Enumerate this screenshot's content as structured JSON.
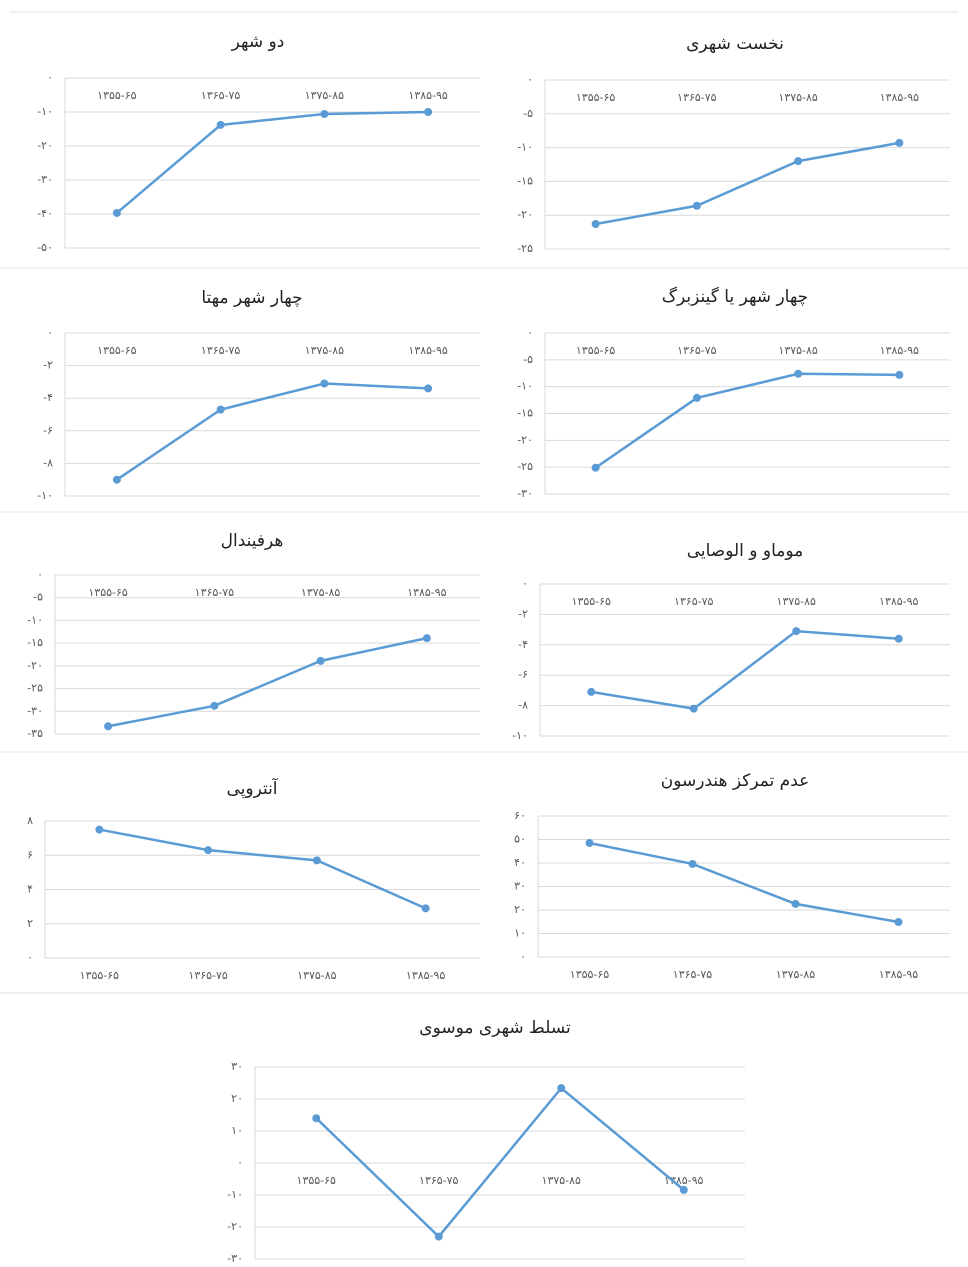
{
  "chart_data": [
    {
      "type": "line",
      "title": "دو شهر",
      "categories": [
        "۱۳۵۵-۶۵",
        "۱۳۶۵-۷۵",
        "۱۳۷۵-۸۵",
        "۱۳۸۵-۹۵"
      ],
      "values": [
        -39.7,
        -13.8,
        -10.6,
        -10
      ],
      "color": "#5b9bd5",
      "ylim": [
        -50,
        0
      ],
      "yticks": [
        {
          "value": 0,
          "label": "۰"
        },
        {
          "value": -10,
          "label": "-۱۰"
        },
        {
          "value": -20,
          "label": "-۲۰"
        },
        {
          "value": -30,
          "label": "-۳۰"
        },
        {
          "value": -40,
          "label": "-۴۰"
        },
        {
          "value": -50,
          "label": "-۵۰"
        }
      ],
      "grid": true
    },
    {
      "type": "line",
      "title": "نخست شهری",
      "categories": [
        "۱۳۵۵-۶۵",
        "۱۳۶۵-۷۵",
        "۱۳۷۵-۸۵",
        "۱۳۸۵-۹۵"
      ],
      "values": [
        -21.3,
        -18.6,
        -12,
        -9.3
      ],
      "color": "#5b9bd5",
      "ylim": [
        -25,
        0
      ],
      "yticks": [
        {
          "value": 0,
          "label": "۰"
        },
        {
          "value": -5,
          "label": "-۵"
        },
        {
          "value": -10,
          "label": "-۱۰"
        },
        {
          "value": -15,
          "label": "-۱۵"
        },
        {
          "value": -20,
          "label": "-۲۰"
        },
        {
          "value": -25,
          "label": "-۲۵"
        }
      ],
      "grid": true
    },
    {
      "type": "line",
      "title": "چهار شهر مهتا",
      "categories": [
        "۱۳۵۵-۶۵",
        "۱۳۶۵-۷۵",
        "۱۳۷۵-۸۵",
        "۱۳۸۵-۹۵"
      ],
      "values": [
        -9,
        -4.7,
        -3.1,
        -3.4
      ],
      "color": "#5b9bd5",
      "ylim": [
        -10,
        0
      ],
      "yticks": [
        {
          "value": 0,
          "label": "۰"
        },
        {
          "value": -2,
          "label": "-۲"
        },
        {
          "value": -4,
          "label": "-۴"
        },
        {
          "value": -6,
          "label": "-۶"
        },
        {
          "value": -8,
          "label": "-۸"
        },
        {
          "value": -10,
          "label": "-۱۰"
        }
      ],
      "grid": true
    },
    {
      "type": "line",
      "title": "چهار شهر یا گینزبرگ",
      "categories": [
        "۱۳۵۵-۶۵",
        "۱۳۶۵-۷۵",
        "۱۳۷۵-۸۵",
        "۱۳۸۵-۹۵"
      ],
      "values": [
        -25.1,
        -12.1,
        -7.6,
        -7.8
      ],
      "color": "#5b9bd5",
      "ylim": [
        -30,
        0
      ],
      "yticks": [
        {
          "value": 0,
          "label": "۰"
        },
        {
          "value": -5,
          "label": "-۵"
        },
        {
          "value": -10,
          "label": "-۱۰"
        },
        {
          "value": -15,
          "label": "-۱۵"
        },
        {
          "value": -20,
          "label": "-۲۰"
        },
        {
          "value": -25,
          "label": "-۲۵"
        },
        {
          "value": -30,
          "label": "-۳۰"
        }
      ],
      "grid": true
    },
    {
      "type": "line",
      "title": "هرفیندال",
      "categories": [
        "۱۳۵۵-۶۵",
        "۱۳۶۵-۷۵",
        "۱۳۷۵-۸۵",
        "۱۳۸۵-۹۵"
      ],
      "values": [
        -33.3,
        -28.8,
        -18.9,
        -13.9
      ],
      "color": "#5b9bd5",
      "ylim": [
        -35,
        0
      ],
      "yticks": [
        {
          "value": 0,
          "label": "۰"
        },
        {
          "value": -5,
          "label": "-۵"
        },
        {
          "value": -10,
          "label": "-۱۰"
        },
        {
          "value": -15,
          "label": "-۱۵"
        },
        {
          "value": -20,
          "label": "-۲۰"
        },
        {
          "value": -25,
          "label": "-۲۵"
        },
        {
          "value": -30,
          "label": "-۳۰"
        },
        {
          "value": -35,
          "label": "-۳۵"
        }
      ],
      "grid": true
    },
    {
      "type": "line",
      "title": "موماو و الوصایی",
      "categories": [
        "۱۳۵۵-۶۵",
        "۱۳۶۵-۷۵",
        "۱۳۷۵-۸۵",
        "۱۳۸۵-۹۵"
      ],
      "values": [
        -7.1,
        -8.2,
        -3.1,
        -3.6
      ],
      "color": "#5b9bd5",
      "ylim": [
        -10,
        0
      ],
      "yticks": [
        {
          "value": 0,
          "label": "۰"
        },
        {
          "value": -2,
          "label": "-۲"
        },
        {
          "value": -4,
          "label": "-۴"
        },
        {
          "value": -6,
          "label": "-۶"
        },
        {
          "value": -8,
          "label": "-۸"
        },
        {
          "value": -10,
          "label": "-۱۰"
        }
      ],
      "grid": true
    },
    {
      "type": "line",
      "title": "آنتروپی",
      "categories": [
        "۱۳۵۵-۶۵",
        "۱۳۶۵-۷۵",
        "۱۳۷۵-۸۵",
        "۱۳۸۵-۹۵"
      ],
      "values": [
        7.5,
        6.3,
        5.7,
        2.9
      ],
      "color": "#5b9bd5",
      "ylim": [
        0,
        8
      ],
      "yticks": [
        {
          "value": 0,
          "label": "۰"
        },
        {
          "value": 2,
          "label": "۲"
        },
        {
          "value": 4,
          "label": "۴"
        },
        {
          "value": 6,
          "label": "۶"
        },
        {
          "value": 8,
          "label": "۸"
        }
      ],
      "grid": true
    },
    {
      "type": "line",
      "title": "عدم تمرکز هندرسون",
      "categories": [
        "۱۳۵۵-۶۵",
        "۱۳۶۵-۷۵",
        "۱۳۷۵-۸۵",
        "۱۳۸۵-۹۵"
      ],
      "values": [
        48.5,
        39.6,
        22.6,
        14.9
      ],
      "color": "#5b9bd5",
      "ylim": [
        0,
        60
      ],
      "yticks": [
        {
          "value": 0,
          "label": "۰"
        },
        {
          "value": 10,
          "label": "۱۰"
        },
        {
          "value": 20,
          "label": "۲۰"
        },
        {
          "value": 30,
          "label": "۳۰"
        },
        {
          "value": 40,
          "label": "۴۰"
        },
        {
          "value": 50,
          "label": "۵۰"
        },
        {
          "value": 60,
          "label": "۶۰"
        }
      ],
      "grid": true
    },
    {
      "type": "line",
      "title": "تسلط شهری موسوی",
      "categories": [
        "۱۳۵۵-۶۵",
        "۱۳۶۵-۷۵",
        "۱۳۷۵-۸۵",
        "۱۳۸۵-۹۵"
      ],
      "values": [
        14,
        -23,
        23.4,
        -8.4
      ],
      "color": "#5b9bd5",
      "ylim": [
        -30,
        30
      ],
      "yticks": [
        {
          "value": 30,
          "label": "۳۰"
        },
        {
          "value": 20,
          "label": "۲۰"
        },
        {
          "value": 10,
          "label": "۱۰"
        },
        {
          "value": 0,
          "label": "۰"
        },
        {
          "value": -10,
          "label": "-۱۰"
        },
        {
          "value": -20,
          "label": "-۲۰"
        },
        {
          "value": -30,
          "label": "-۳۰"
        }
      ],
      "grid": true
    }
  ]
}
